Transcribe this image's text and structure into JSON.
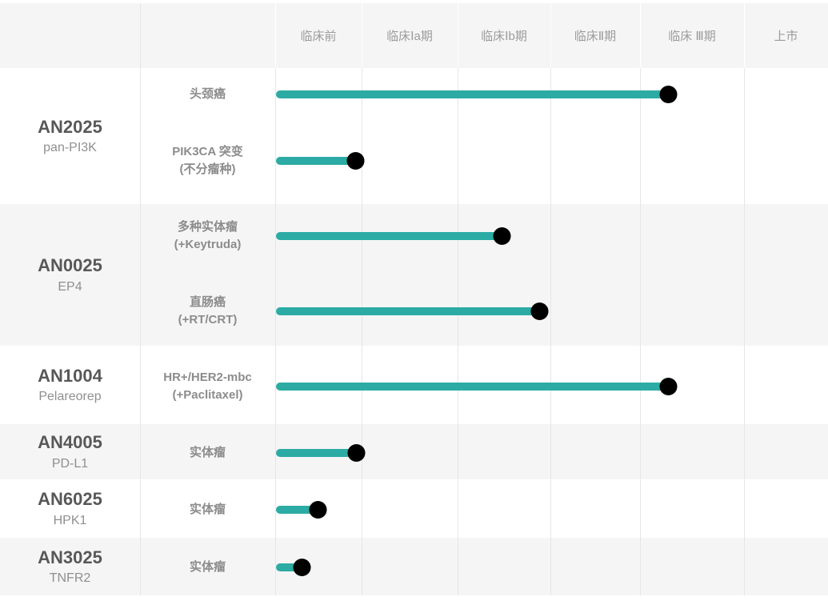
{
  "colors": {
    "accent": "#2baba4",
    "row_alt_bg": "#f5f5f6",
    "grid_line": "#e6e6e7",
    "drug_code_text": "#585858",
    "secondary_text": "#8f8f8f",
    "header_text": "#9b9b9b"
  },
  "header": {
    "phases": [
      {
        "label": "临床前"
      },
      {
        "label": "临床Ⅰa期"
      },
      {
        "label": "临床Ⅰb期"
      },
      {
        "label": "临床Ⅱ期"
      },
      {
        "label": "临床 Ⅲ期"
      },
      {
        "label": "上市"
      }
    ]
  },
  "rows": [
    {
      "code": "AN2025",
      "target": "pan-PI3K",
      "programs": [
        {
          "lines": [
            "头颈癌"
          ],
          "bar": {
            "y": 118,
            "end_x": 835,
            "phase": "临床 Ⅲ期",
            "icon": "globe-icon"
          }
        },
        {
          "lines": [
            "PIK3CA 突变",
            "(不分瘤种)"
          ],
          "bar": {
            "y": 201,
            "end_x": 444,
            "phase": "临床前",
            "icon": "globe-icon"
          }
        }
      ]
    },
    {
      "code": "AN0025",
      "target": "EP4",
      "programs": [
        {
          "lines": [
            "多种实体瘤",
            "(+Keytruda)"
          ],
          "bar": {
            "y": 295,
            "end_x": 627,
            "phase": "临床Ⅰb期",
            "icon": "globe-icon"
          }
        },
        {
          "lines": [
            "直肠癌",
            "(+RT/CRT)"
          ],
          "bar": {
            "y": 389,
            "end_x": 674,
            "phase": "临床Ⅰb期",
            "icon": "globe-icon"
          }
        }
      ]
    },
    {
      "code": "AN1004",
      "target": "Pelareorep",
      "programs": [
        {
          "lines": [
            "HR+/HER2-mbc",
            "(+Paclitaxel)"
          ],
          "bar": {
            "y": 483,
            "end_x": 835,
            "phase": "临床 Ⅲ期",
            "icon": "globe-icon"
          }
        }
      ]
    },
    {
      "code": "AN4005",
      "target": "PD-L1",
      "programs": [
        {
          "lines": [
            "实体瘤"
          ],
          "bar": {
            "y": 566,
            "end_x": 445,
            "phase": "临床前",
            "icon": "globe-icon"
          }
        }
      ]
    },
    {
      "code": "AN6025",
      "target": "HPK1",
      "programs": [
        {
          "lines": [
            "实体瘤"
          ],
          "bar": {
            "y": 637,
            "end_x": 397,
            "phase": "临床前",
            "icon": "globe-icon"
          }
        }
      ]
    },
    {
      "code": "AN3025",
      "target": "TNFR2",
      "programs": [
        {
          "lines": [
            "实体瘤"
          ],
          "bar": {
            "y": 709,
            "end_x": 377,
            "phase": "临床前",
            "icon": "globe-icon"
          }
        }
      ]
    }
  ],
  "chart_data": {
    "type": "bar",
    "orientation": "horizontal",
    "title": "",
    "phases": [
      "临床前",
      "临床Ⅰa期",
      "临床Ⅰb期",
      "临床Ⅱ期",
      "临床 Ⅲ期",
      "上市"
    ],
    "axis_note": "progress measured in phase-column units; 0 = start of 临床前, 6 = end of 上市",
    "series": [
      {
        "drug": "AN2025",
        "target": "pan-PI3K",
        "indication": "头颈癌",
        "phase_reached": "临床 Ⅲ期",
        "progress": 4.27
      },
      {
        "drug": "AN2025",
        "target": "pan-PI3K",
        "indication": "PIK3CA 突变 (不分瘤种)",
        "phase_reached": "临床前",
        "progress": 0.92
      },
      {
        "drug": "AN0025",
        "target": "EP4",
        "indication": "多种实体瘤 (+Keytruda)",
        "phase_reached": "临床Ⅰb期",
        "progress": 2.47
      },
      {
        "drug": "AN0025",
        "target": "EP4",
        "indication": "直肠癌 (+RT/CRT)",
        "phase_reached": "临床Ⅰb期",
        "progress": 2.88
      },
      {
        "drug": "AN1004",
        "target": "Pelareorep",
        "indication": "HR+/HER2-mbc (+Paclitaxel)",
        "phase_reached": "临床 Ⅲ期",
        "progress": 4.27
      },
      {
        "drug": "AN4005",
        "target": "PD-L1",
        "indication": "实体瘤",
        "phase_reached": "临床前",
        "progress": 0.93
      },
      {
        "drug": "AN6025",
        "target": "HPK1",
        "indication": "实体瘤",
        "phase_reached": "临床前",
        "progress": 0.48
      },
      {
        "drug": "AN3025",
        "target": "TNFR2",
        "indication": "实体瘤",
        "phase_reached": "临床前",
        "progress": 0.3
      }
    ],
    "legend_position": "none",
    "grid": true
  }
}
